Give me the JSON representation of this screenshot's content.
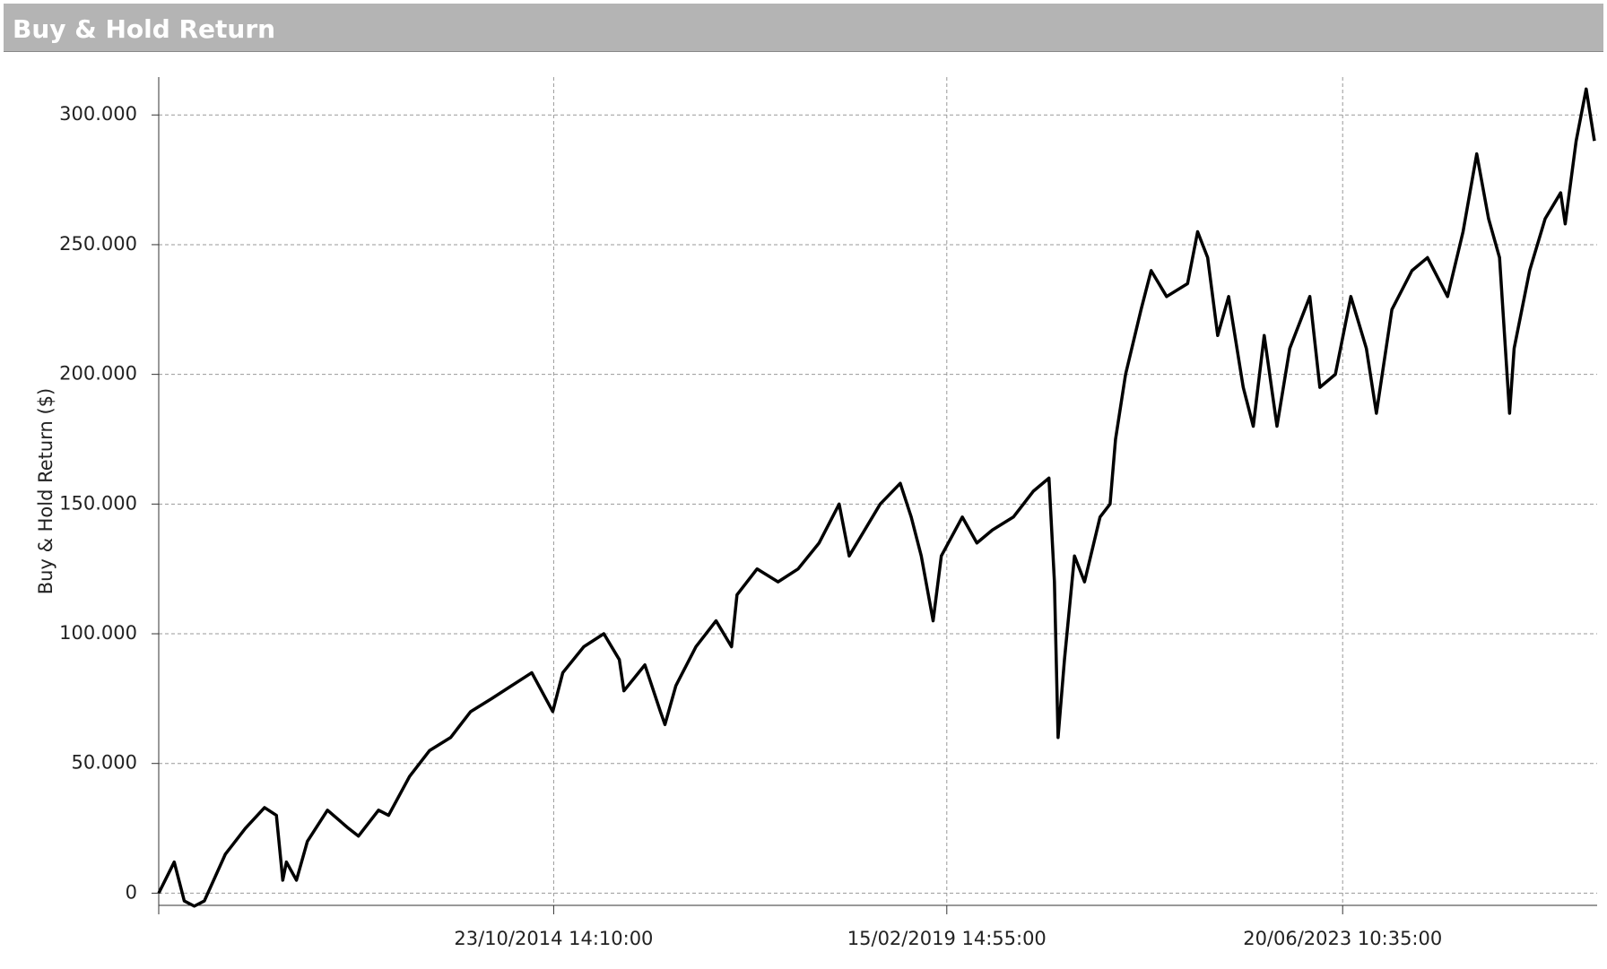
{
  "header": {
    "title": "Buy & Hold Return"
  },
  "chart_data": {
    "type": "line",
    "ylabel": "Buy & Hold Return ($)",
    "grid": true,
    "color": "#000000",
    "x": [
      2010.48,
      2010.65,
      2010.76,
      2010.87,
      2010.98,
      2011.21,
      2011.43,
      2011.64,
      2011.77,
      2011.84,
      2011.88,
      2011.99,
      2012.11,
      2012.33,
      2012.56,
      2012.67,
      2012.89,
      2013.0,
      2013.23,
      2013.45,
      2013.68,
      2013.9,
      2014.13,
      2014.35,
      2014.57,
      2014.8,
      2014.91,
      2015.14,
      2015.36,
      2015.53,
      2015.58,
      2015.81,
      2015.98,
      2016.03,
      2016.15,
      2016.37,
      2016.59,
      2016.76,
      2016.82,
      2017.04,
      2017.27,
      2017.49,
      2017.72,
      2017.94,
      2018.05,
      2018.22,
      2018.39,
      2018.61,
      2018.73,
      2018.84,
      2018.97,
      2019.06,
      2019.29,
      2019.45,
      2019.62,
      2019.85,
      2020.07,
      2020.24,
      2020.3,
      2020.34,
      2020.41,
      2020.52,
      2020.63,
      2020.8,
      2020.91,
      2020.97,
      2021.08,
      2021.25,
      2021.36,
      2021.53,
      2021.76,
      2021.87,
      2021.98,
      2022.09,
      2022.21,
      2022.37,
      2022.48,
      2022.6,
      2022.74,
      2022.88,
      2023.1,
      2023.21,
      2023.38,
      2023.55,
      2023.72,
      2023.83,
      2024.0,
      2024.22,
      2024.39,
      2024.61,
      2024.78,
      2024.93,
      2025.06,
      2025.18,
      2025.29,
      2025.34,
      2025.51,
      2025.68,
      2025.85,
      2025.9,
      2026.02,
      2026.13,
      2026.22
    ],
    "series": [
      {
        "name": "Buy & Hold Return",
        "color": "#000000",
        "values": [
          0,
          12000,
          -3000,
          -5000,
          -3000,
          15000,
          25000,
          33000,
          30000,
          5000,
          12000,
          5000,
          20000,
          32000,
          25000,
          22000,
          32000,
          30000,
          45000,
          55000,
          60000,
          70000,
          75000,
          80000,
          85000,
          70000,
          85000,
          95000,
          100000,
          90000,
          78000,
          88000,
          70000,
          65000,
          80000,
          95000,
          105000,
          95000,
          115000,
          125000,
          120000,
          125000,
          135000,
          150000,
          130000,
          140000,
          150000,
          158000,
          145000,
          130000,
          105000,
          130000,
          145000,
          135000,
          140000,
          145000,
          155000,
          160000,
          120000,
          60000,
          90000,
          130000,
          120000,
          145000,
          150000,
          175000,
          200000,
          225000,
          240000,
          230000,
          235000,
          255000,
          245000,
          215000,
          230000,
          195000,
          180000,
          215000,
          180000,
          210000,
          230000,
          195000,
          200000,
          230000,
          210000,
          185000,
          225000,
          240000,
          245000,
          230000,
          255000,
          285000,
          260000,
          245000,
          185000,
          210000,
          240000,
          260000,
          270000,
          258000,
          290000,
          310000,
          290000
        ]
      }
    ],
    "xlim": [
      2010.48,
      2026.25
    ],
    "xticks": [
      {
        "value": 2014.81,
        "label": "23/10/2014 14:10:00"
      },
      {
        "value": 2019.12,
        "label": "15/02/2019 14:55:00"
      },
      {
        "value": 2023.46,
        "label": "20/06/2023 10:35:00"
      }
    ],
    "ylim": [
      -4700,
      314600
    ],
    "yticks": [
      0,
      {
        "value": 50000,
        "label": "50.000"
      },
      {
        "value": 100000,
        "label": "100.000"
      },
      {
        "value": 150000,
        "label": "150.000"
      },
      {
        "value": 200000,
        "label": "200.000"
      },
      {
        "value": 250000,
        "label": "250.000"
      },
      {
        "value": 300000,
        "label": "300.000"
      }
    ]
  }
}
